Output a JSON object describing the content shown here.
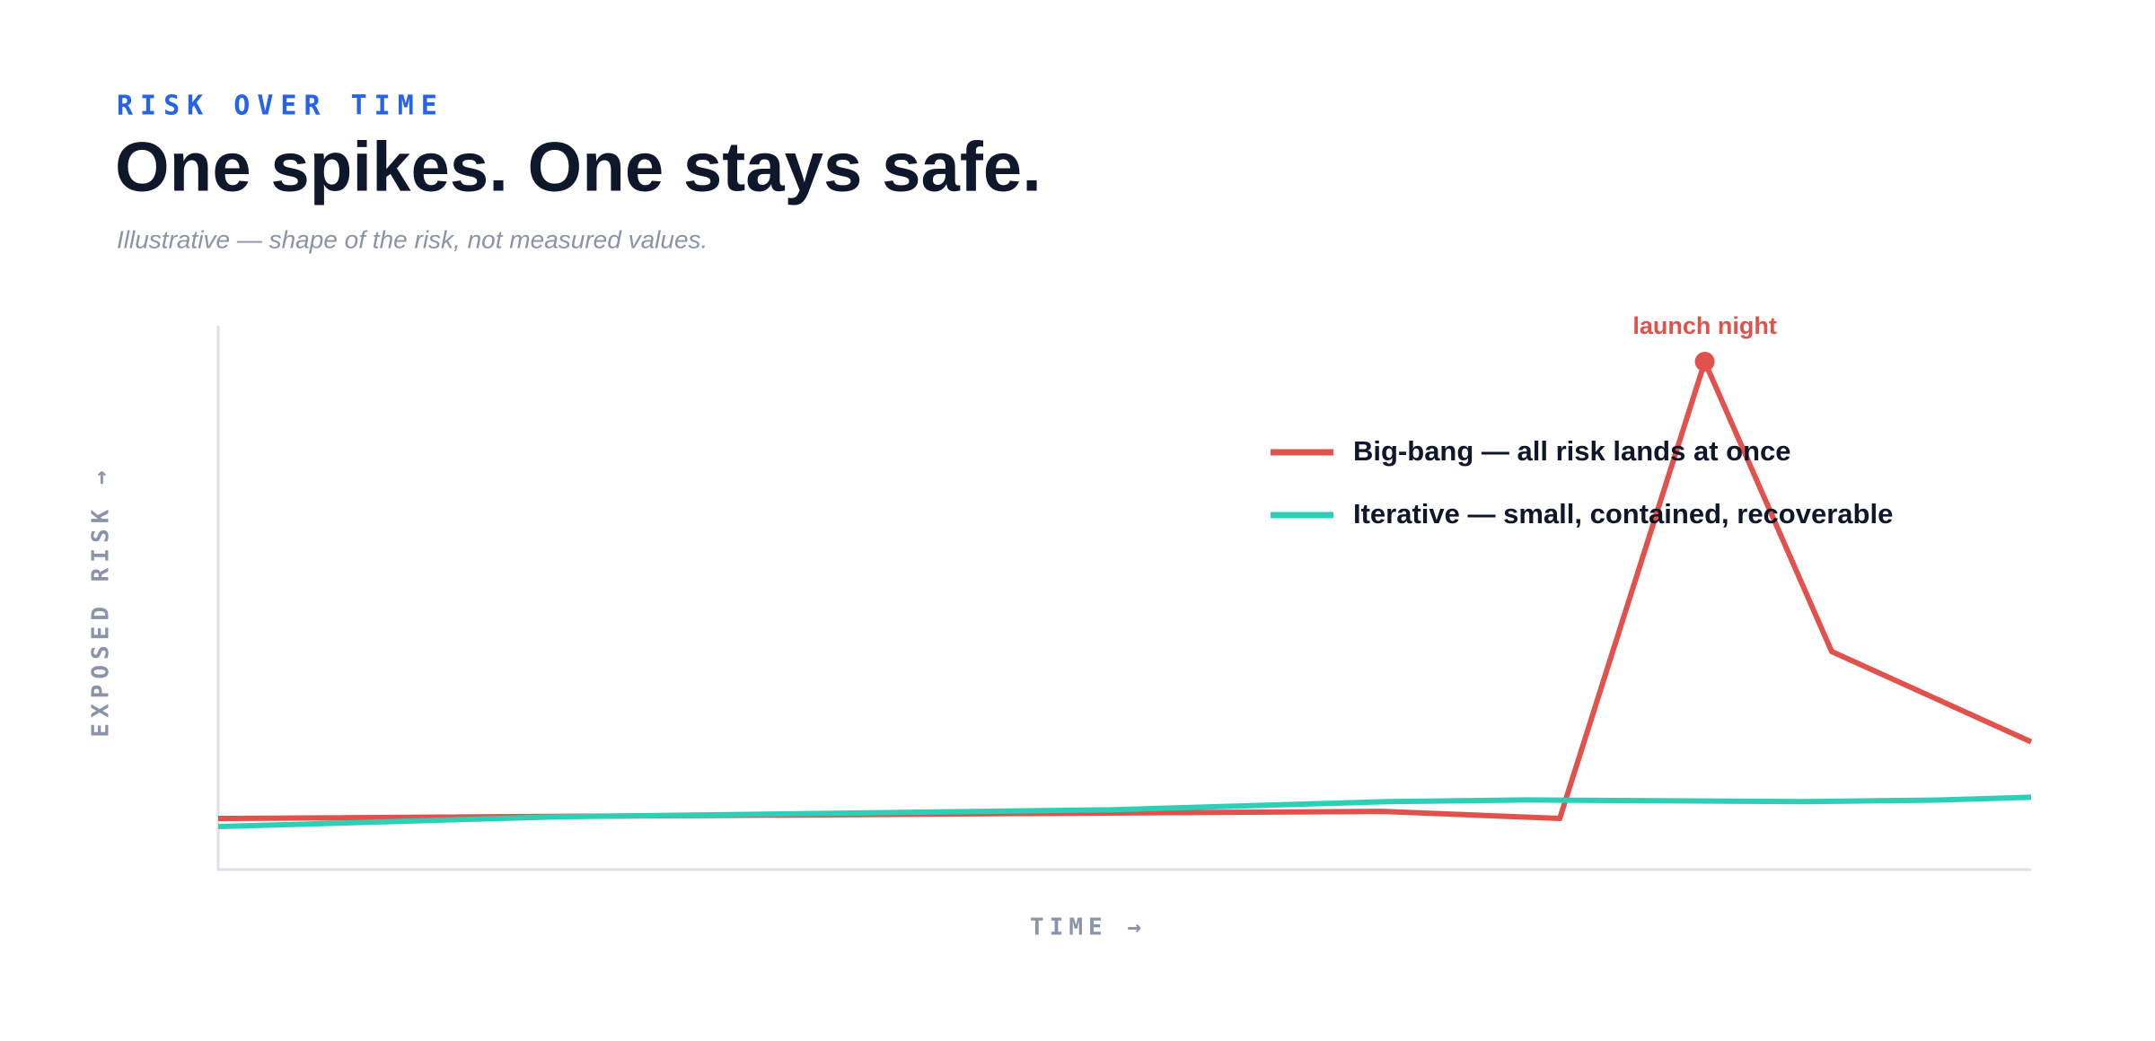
{
  "chart_data": {
    "type": "line",
    "eyebrow": "RISK OVER TIME",
    "title": "One spikes. One stays safe.",
    "subtitle": "Illustrative — shape of the risk, not measured values.",
    "x_label": "TIME →",
    "y_label": "EXPOSED RISK →",
    "xlim": [
      0,
      100
    ],
    "ylim": [
      0,
      100
    ],
    "legend": "top-right",
    "annotation": "launch night",
    "series": [
      {
        "name": "Big-bang — all risk lands at once",
        "color": "#e0524b",
        "x": [
          0,
          64.2,
          74.0,
          82.0,
          89.0,
          100
        ],
        "values": [
          9.4,
          10.7,
          9.4,
          93.4,
          40.1,
          23.5
        ]
      },
      {
        "name": "Iterative — small, contained, recoverable",
        "color": "#2ecfb7",
        "x": [
          0,
          18.6,
          49.2,
          64.5,
          72.1,
          87.4,
          95.1,
          100
        ],
        "values": [
          7.9,
          9.7,
          11.0,
          12.5,
          12.8,
          12.5,
          12.8,
          13.3
        ]
      }
    ]
  }
}
